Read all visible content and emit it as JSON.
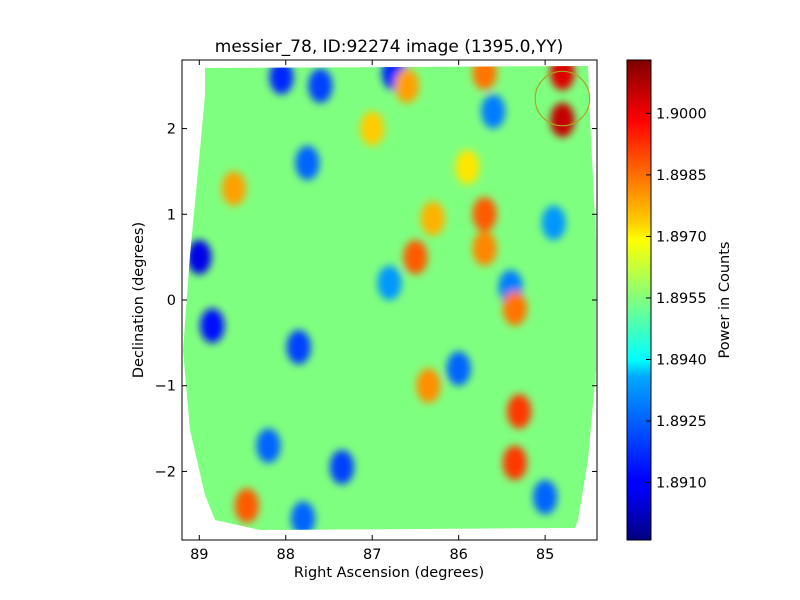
{
  "chart_data": {
    "type": "heatmap",
    "title": "messier_78, ID:92274 image (1395.0,YY)",
    "xlabel": "Right Ascension (degrees)",
    "ylabel": "Declination (degrees)",
    "colorbar_label": "Power in Counts",
    "colormap": "jet",
    "xlim": [
      89.2,
      84.4
    ],
    "ylim": [
      -2.8,
      2.8
    ],
    "x_ticks": [
      "89",
      "88",
      "87",
      "86",
      "85"
    ],
    "x_tick_values": [
      89,
      88,
      87,
      86,
      85
    ],
    "y_ticks": [
      "−2",
      "−1",
      "0",
      "1",
      "2"
    ],
    "y_tick_values": [
      -2,
      -1,
      0,
      1,
      2
    ],
    "colorbar_range": [
      1.8896,
      1.9013
    ],
    "colorbar_ticks": [
      "1.8910",
      "1.8925",
      "1.8940",
      "1.8955",
      "1.8970",
      "1.8985",
      "1.9000"
    ],
    "colorbar_tick_values": [
      1.891,
      1.8925,
      1.894,
      1.8955,
      1.897,
      1.8985,
      1.9
    ],
    "baseline_power": 1.8955,
    "hot_spots": [
      {
        "ra": 84.8,
        "dec": 2.1,
        "power": 1.9005
      },
      {
        "ra": 84.8,
        "dec": 2.65,
        "power": 1.9002
      },
      {
        "ra": 85.7,
        "dec": 2.65,
        "power": 1.8985
      },
      {
        "ra": 86.5,
        "dec": 0.5,
        "power": 1.8988
      },
      {
        "ra": 86.3,
        "dec": 0.95,
        "power": 1.8978
      },
      {
        "ra": 85.7,
        "dec": 0.6,
        "power": 1.8983
      },
      {
        "ra": 85.7,
        "dec": 1.0,
        "power": 1.8988
      },
      {
        "ra": 85.35,
        "dec": -0.1,
        "power": 1.8985
      },
      {
        "ra": 85.3,
        "dec": -1.3,
        "power": 1.8992
      },
      {
        "ra": 85.35,
        "dec": -1.9,
        "power": 1.8992
      },
      {
        "ra": 88.45,
        "dec": -2.4,
        "power": 1.8988
      },
      {
        "ra": 86.35,
        "dec": -1.0,
        "power": 1.8982
      },
      {
        "ra": 86.6,
        "dec": 2.5,
        "power": 1.898
      },
      {
        "ra": 88.6,
        "dec": 1.3,
        "power": 1.898
      },
      {
        "ra": 87.0,
        "dec": 2.0,
        "power": 1.8975
      },
      {
        "ra": 85.9,
        "dec": 1.55,
        "power": 1.8972
      }
    ],
    "cold_spots": [
      {
        "ra": 88.05,
        "dec": 2.6,
        "power": 1.8915
      },
      {
        "ra": 87.6,
        "dec": 2.5,
        "power": 1.8918
      },
      {
        "ra": 86.75,
        "dec": 2.65,
        "power": 1.8915
      },
      {
        "ra": 89.0,
        "dec": 0.5,
        "power": 1.8908
      },
      {
        "ra": 88.85,
        "dec": -0.3,
        "power": 1.8912
      },
      {
        "ra": 87.85,
        "dec": -0.55,
        "power": 1.8918
      },
      {
        "ra": 87.75,
        "dec": 1.6,
        "power": 1.8922
      },
      {
        "ra": 87.35,
        "dec": -1.95,
        "power": 1.8918
      },
      {
        "ra": 88.2,
        "dec": -1.7,
        "power": 1.8922
      },
      {
        "ra": 86.0,
        "dec": -0.8,
        "power": 1.8922
      },
      {
        "ra": 85.4,
        "dec": 0.15,
        "power": 1.8925
      },
      {
        "ra": 85.0,
        "dec": -2.3,
        "power": 1.8922
      },
      {
        "ra": 85.6,
        "dec": 2.2,
        "power": 1.8925
      },
      {
        "ra": 84.9,
        "dec": 0.9,
        "power": 1.8928
      },
      {
        "ra": 86.8,
        "dec": 0.2,
        "power": 1.8928
      },
      {
        "ra": 87.8,
        "dec": -2.55,
        "power": 1.8922
      }
    ],
    "circle_marker": {
      "ra": 84.8,
      "dec": 2.35,
      "radius_deg": 0.42,
      "color": "#a8a820"
    },
    "colors": {
      "axis": "#000000",
      "background": "#ffffff"
    }
  }
}
